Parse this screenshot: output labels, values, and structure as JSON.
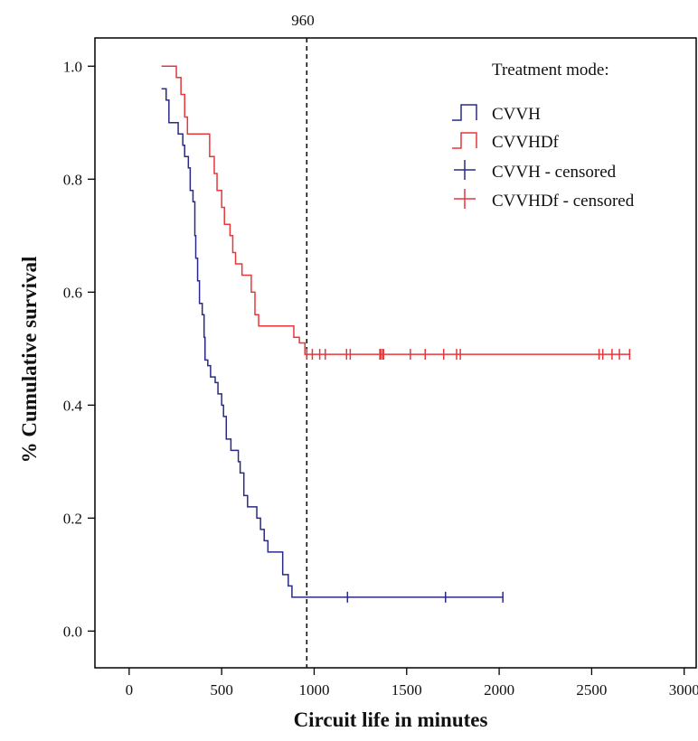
{
  "chart_data": {
    "type": "line",
    "title": "",
    "xlabel": "Circuit life in minutes",
    "ylabel": "% Cumulative survival",
    "xlim": [
      -185,
      3065
    ],
    "ylim": [
      -0.065,
      1.05
    ],
    "x_ticks": [
      0,
      500,
      1000,
      1500,
      2000,
      2500,
      3000
    ],
    "x_tick_labels": [
      "0",
      "500",
      "1000",
      "1500",
      "2000",
      "2500",
      "3000"
    ],
    "y_ticks": [
      0.0,
      0.2,
      0.4,
      0.6,
      0.8,
      1.0
    ],
    "y_tick_labels": [
      "0.0",
      "0.2",
      "0.4",
      "0.6",
      "0.8",
      "1.0"
    ],
    "grid": false,
    "legend_title": "Treatment mode:",
    "legend_position": "top-right",
    "reference_line": {
      "x": 960,
      "label": "960",
      "style": "dashed"
    },
    "series": [
      {
        "name": "CVVH",
        "color": "#2a2a86",
        "steps": [
          [
            175,
            0.96
          ],
          [
            200,
            0.94
          ],
          [
            215,
            0.9
          ],
          [
            265,
            0.88
          ],
          [
            290,
            0.86
          ],
          [
            300,
            0.84
          ],
          [
            320,
            0.82
          ],
          [
            330,
            0.78
          ],
          [
            345,
            0.76
          ],
          [
            355,
            0.7
          ],
          [
            360,
            0.66
          ],
          [
            370,
            0.62
          ],
          [
            380,
            0.58
          ],
          [
            395,
            0.56
          ],
          [
            405,
            0.52
          ],
          [
            410,
            0.48
          ],
          [
            425,
            0.47
          ],
          [
            440,
            0.45
          ],
          [
            465,
            0.44
          ],
          [
            480,
            0.42
          ],
          [
            500,
            0.4
          ],
          [
            510,
            0.38
          ],
          [
            525,
            0.34
          ],
          [
            550,
            0.32
          ],
          [
            590,
            0.3
          ],
          [
            600,
            0.28
          ],
          [
            620,
            0.24
          ],
          [
            640,
            0.22
          ],
          [
            690,
            0.2
          ],
          [
            710,
            0.18
          ],
          [
            730,
            0.16
          ],
          [
            750,
            0.14
          ],
          [
            830,
            0.1
          ],
          [
            860,
            0.08
          ],
          [
            880,
            0.06
          ],
          [
            2020,
            0.06
          ]
        ]
      },
      {
        "name": "CVVHDf",
        "color": "#e8363a",
        "steps": [
          [
            175,
            1.0
          ],
          [
            255,
            0.98
          ],
          [
            280,
            0.95
          ],
          [
            300,
            0.91
          ],
          [
            315,
            0.88
          ],
          [
            435,
            0.84
          ],
          [
            460,
            0.81
          ],
          [
            475,
            0.78
          ],
          [
            500,
            0.75
          ],
          [
            515,
            0.72
          ],
          [
            545,
            0.7
          ],
          [
            560,
            0.67
          ],
          [
            575,
            0.65
          ],
          [
            610,
            0.63
          ],
          [
            660,
            0.6
          ],
          [
            680,
            0.56
          ],
          [
            700,
            0.54
          ],
          [
            890,
            0.52
          ],
          [
            920,
            0.51
          ],
          [
            950,
            0.49
          ],
          [
            2710,
            0.49
          ]
        ]
      },
      {
        "name": "CVVH - censored",
        "color": "#2a2a86",
        "x": [
          1180,
          1710,
          2020
        ],
        "y": [
          0.06,
          0.06,
          0.06
        ]
      },
      {
        "name": "CVVHDf - censored",
        "color": "#e8363a",
        "x": [
          960,
          990,
          1030,
          1060,
          1175,
          1195,
          1355,
          1360,
          1370,
          1375,
          1520,
          1600,
          1700,
          1770,
          1790,
          2540,
          2560,
          2610,
          2650,
          2705
        ],
        "y": [
          0.49,
          0.49,
          0.49,
          0.49,
          0.49,
          0.49,
          0.49,
          0.49,
          0.49,
          0.49,
          0.49,
          0.49,
          0.49,
          0.49,
          0.49,
          0.49,
          0.49,
          0.49,
          0.49,
          0.49
        ]
      }
    ]
  }
}
